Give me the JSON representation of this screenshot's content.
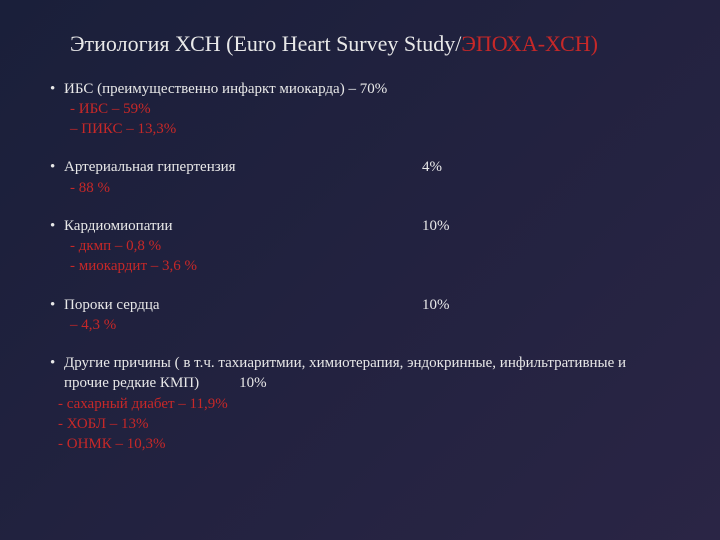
{
  "colors": {
    "background_start": "#1a1f3a",
    "background_end": "#2a2545",
    "text_primary": "#e8e8e8",
    "text_red": "#c62828"
  },
  "title": {
    "main": "Этиология ХСН (Euro Heart Survey Study/",
    "red": "ЭПОХА-ХСН)",
    "fontsize": 22
  },
  "items": [
    {
      "label": "ИБС (преимущественно инфаркт миокарда) – 70%",
      "value": "",
      "value_inline": true,
      "subs": [
        "- ИБС – 59%",
        "– ПИКС – 13,3%"
      ]
    },
    {
      "label": "Артериальная гипертензия",
      "value": "4%",
      "value_inline": false,
      "subs": [
        "- 88 %"
      ]
    },
    {
      "label": "Кардиомиопатии",
      "value": "10%",
      "value_inline": false,
      "subs": [
        "- дкмп – 0,8 %",
        "- миокардит – 3,6 %"
      ]
    },
    {
      "label": "Пороки сердца",
      "value": "10%",
      "value_inline": false,
      "subs": [
        "– 4,3 %"
      ]
    },
    {
      "label": "Другие причины ( в т.ч. тахиаритмии, химиотерапия, эндокринные, инфильтративные  и прочие редкие КМП)",
      "value": "10%",
      "value_append": true,
      "value_inline": false,
      "subs_style": "other",
      "subs": [
        "- сахарный диабет – 11,9%",
        "- ХОБЛ – 13%",
        "- ОНМК – 10,3%"
      ]
    }
  ]
}
